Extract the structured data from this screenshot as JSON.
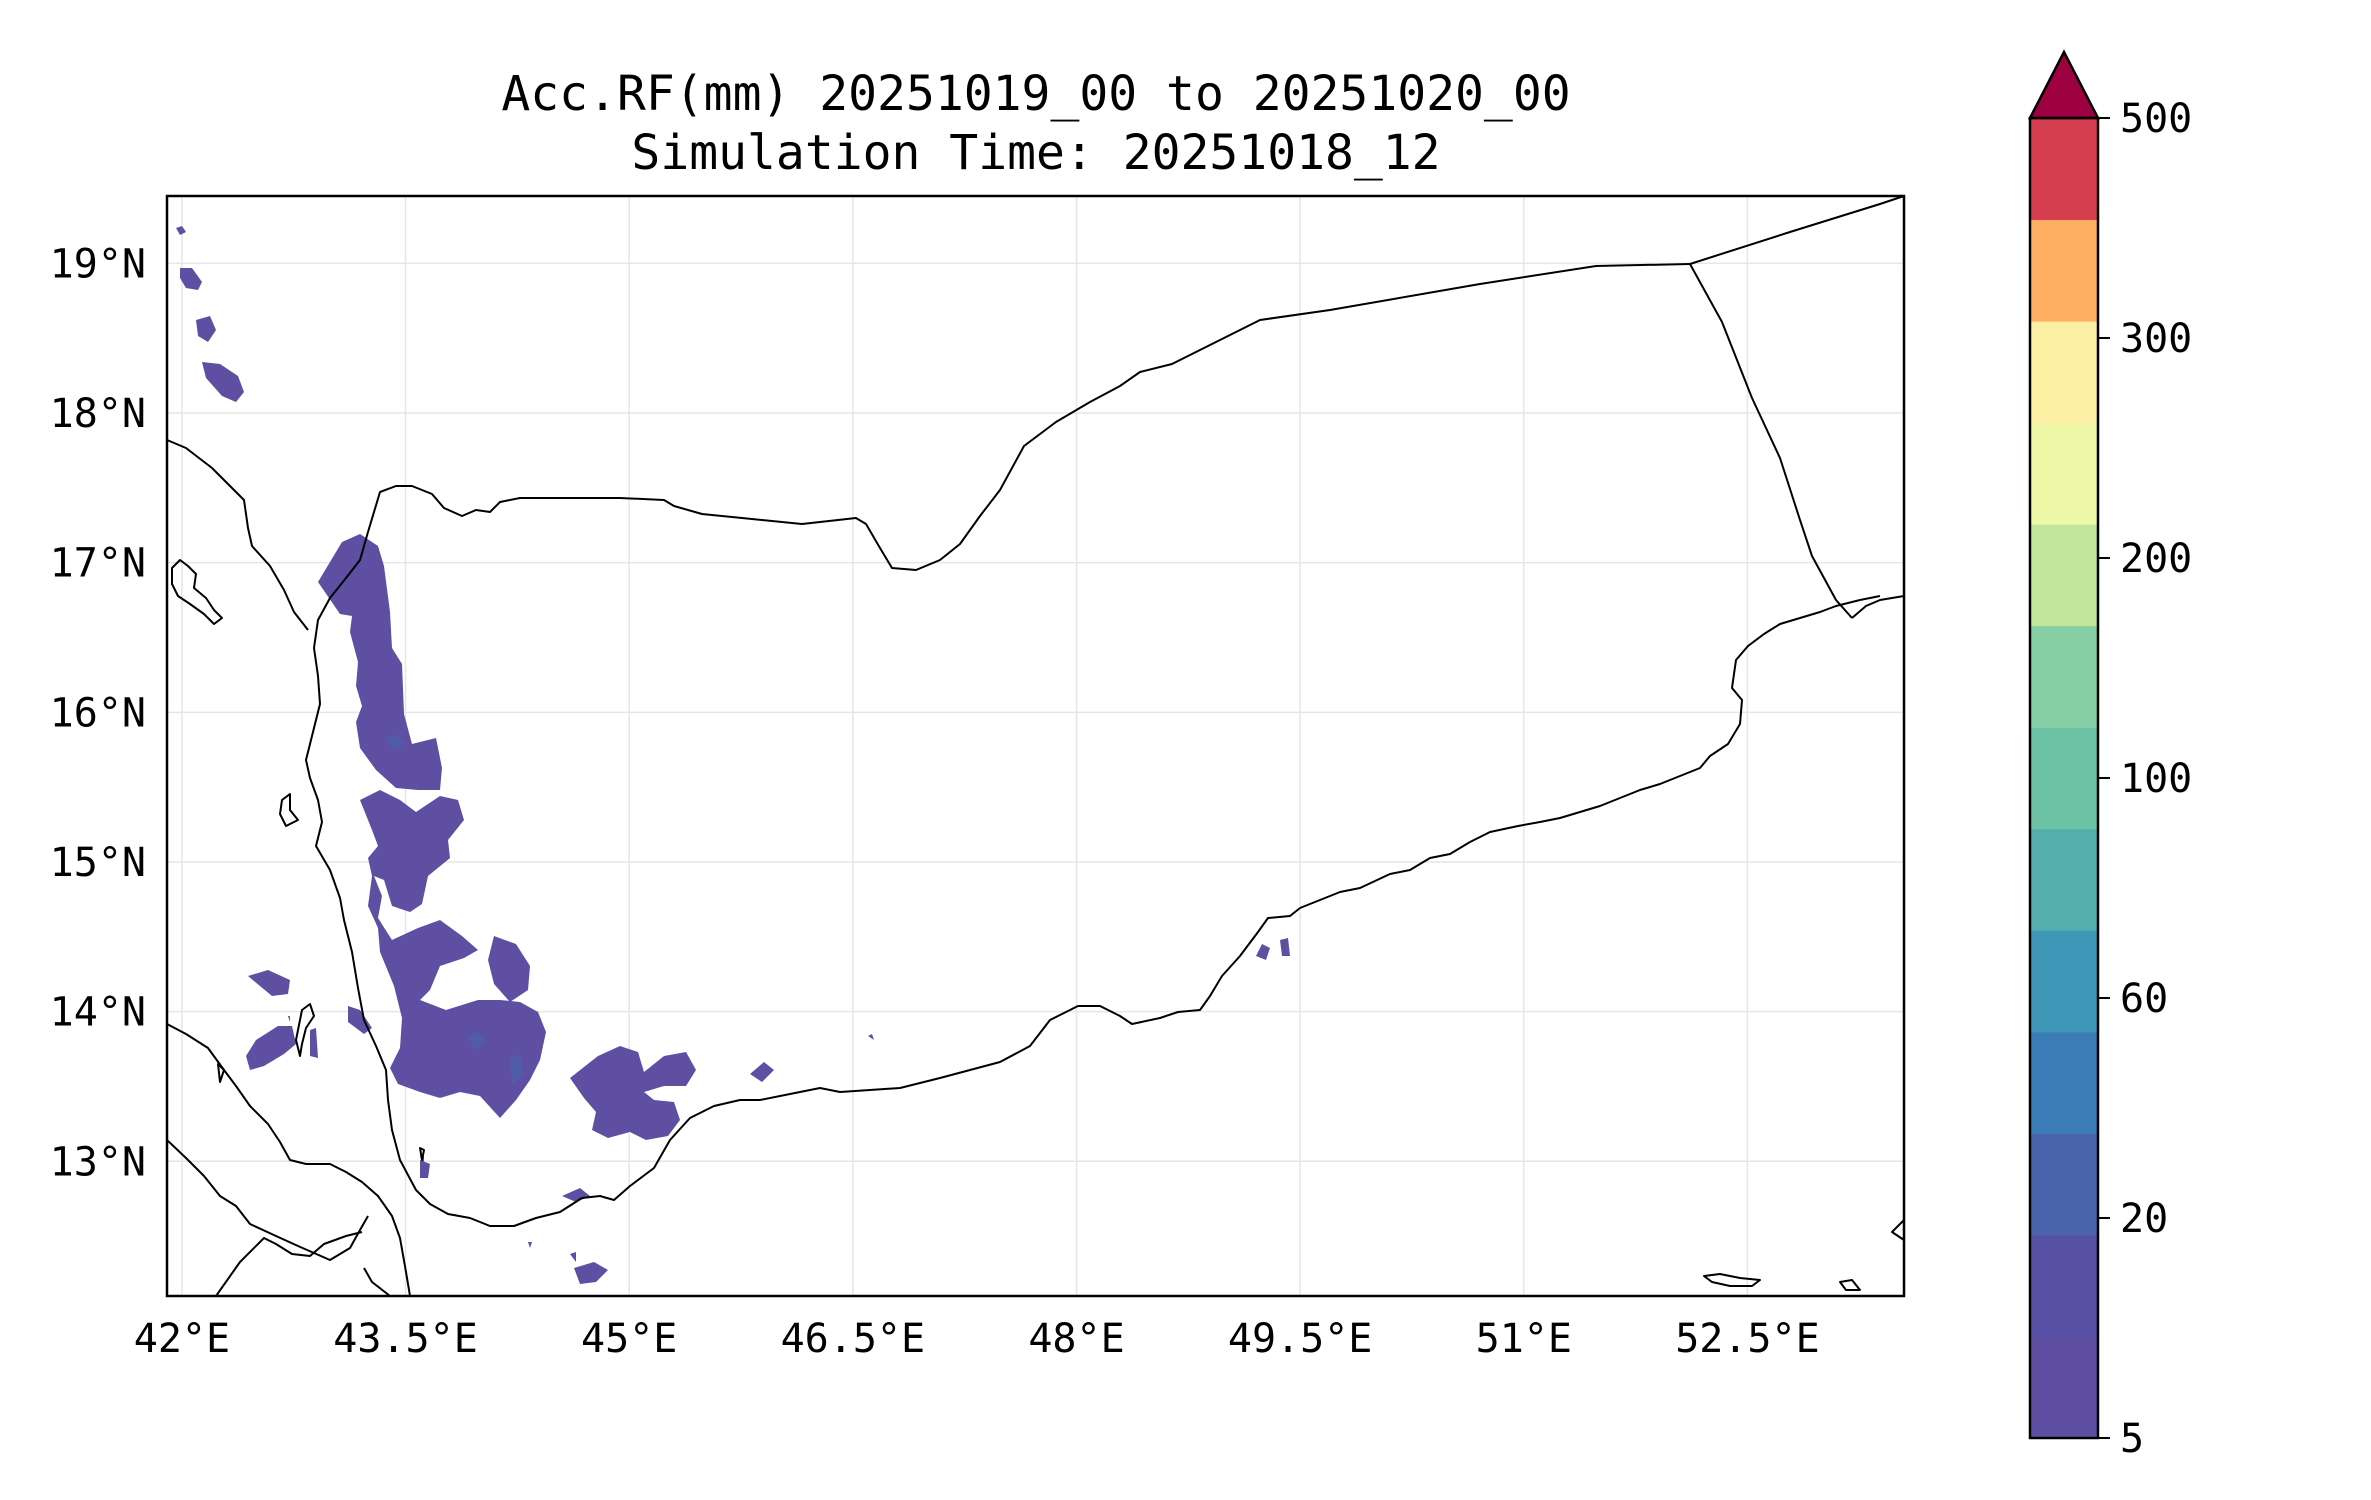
{
  "map": {
    "title_line1": "Acc.RF(mm) 20251019_00 to 20251020_00",
    "title_line2": "Simulation Time: 20251018_12",
    "lon_ticks": [
      "42°E",
      "43.5°E",
      "45°E",
      "46.5°E",
      "48°E",
      "49.5°E",
      "51°E",
      "52.5°E"
    ],
    "lat_ticks": [
      "19°N",
      "18°N",
      "17°N",
      "16°N",
      "15°N",
      "14°N",
      "13°N"
    ],
    "lon_values": [
      42,
      43.5,
      45,
      46.5,
      48,
      49.5,
      51,
      52.5
    ],
    "lat_values": [
      19,
      18,
      17,
      16,
      15,
      14,
      13
    ],
    "extent": {
      "lon_min": 41.9,
      "lon_max": 53.55,
      "lat_min": 12.1,
      "lat_max": 19.45
    },
    "rain_color": "#5e4fa2"
  },
  "colorbar": {
    "tick_labels": [
      "500",
      "300",
      "200",
      "100",
      "60",
      "20",
      "5"
    ],
    "extend_color": "#9e0142",
    "colors": [
      "#5e4fa2",
      "#5651a5",
      "#4a63ad",
      "#3b7cb7",
      "#3f97b7",
      "#54aeac",
      "#6dc3a6",
      "#86cfa5",
      "#c2e69a",
      "#eef8a6",
      "#fdefa4",
      "#fdae61",
      "#d53e4f"
    ]
  }
}
